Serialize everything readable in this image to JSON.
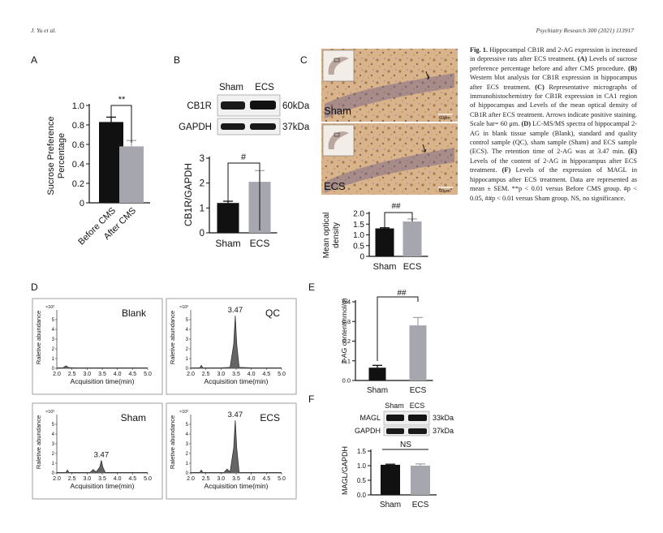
{
  "header": {
    "authors": "J. Yu et al.",
    "journal": "Psychiatry Research 300 (2021) 113917"
  },
  "panels": {
    "A": "A",
    "B": "B",
    "C": "C",
    "D": "D",
    "E": "E",
    "F": "F"
  },
  "panel_a": {
    "ylabel_line1": "Sucrose Preference",
    "ylabel_line2": "Percentage",
    "sig": "**"
  },
  "panel_b": {
    "lanes": [
      "Sham",
      "ECS"
    ],
    "bands": [
      "CB1R",
      "GAPDH"
    ],
    "kda": [
      "60kDa",
      "37kDa"
    ],
    "sig": "#"
  },
  "panel_c": {
    "labels": [
      "Sham",
      "ECS"
    ],
    "scalebar": "60μm",
    "ylabel_line1": "Mean optical",
    "ylabel_line2": "density",
    "sig": "##"
  },
  "panel_d": {
    "ylabel": "Raletive abundance",
    "xlabel": "Acquisition time(min)",
    "yunit": "×10²",
    "peak_label": "3.47",
    "titles": [
      "Blank",
      "QC",
      "Sham",
      "ECS"
    ]
  },
  "panel_e": {
    "sig": "##"
  },
  "panel_f": {
    "lanes": [
      "Sham",
      "ECS"
    ],
    "bands": [
      "MAGL",
      "GAPDH"
    ],
    "kda": [
      "33kDa",
      "37kDa"
    ],
    "sig": "NS"
  },
  "chart_data": [
    {
      "type": "bar",
      "panel": "A",
      "categories": [
        "Before CMS",
        "After CMS"
      ],
      "values": [
        0.83,
        0.58
      ],
      "errors": [
        0.05,
        0.06
      ],
      "ylabel": "Sucrose Preference Percentage",
      "ylim": [
        0,
        1.0
      ],
      "yticks": [
        "0",
        "0.2",
        "0.4",
        "0.6",
        "0.8",
        "1.0"
      ],
      "colors": [
        "#111111",
        "#a6a6ae"
      ]
    },
    {
      "type": "bar",
      "panel": "B",
      "categories": [
        "Sham",
        "ECS"
      ],
      "values": [
        1.2,
        2.05
      ],
      "errors": [
        0.07,
        0.45
      ],
      "ylabel": "CB1R/GAPDH",
      "ylim": [
        0,
        3
      ],
      "yticks": [
        "0",
        "1",
        "2",
        "3"
      ],
      "colors": [
        "#111111",
        "#a6a6ae"
      ]
    },
    {
      "type": "bar",
      "panel": "C",
      "categories": [
        "Sham",
        "ECS"
      ],
      "values": [
        1.3,
        1.62
      ],
      "errors": [
        0.03,
        0.12
      ],
      "ylabel": "Mean optical density",
      "ylim": [
        0,
        2.0
      ],
      "yticks": [
        "0",
        "0.5",
        "1.0",
        "1.5",
        "2.0"
      ],
      "colors": [
        "#111111",
        "#a6a6ae"
      ]
    },
    {
      "type": "bar",
      "panel": "E",
      "categories": [
        "Sham",
        "ECS"
      ],
      "values": [
        0.065,
        0.28
      ],
      "errors": [
        0.012,
        0.04
      ],
      "ylabel": "2-AG content(nmol/g)",
      "ylim": [
        0,
        0.4
      ],
      "yticks": [
        "0.0",
        "0.1",
        "0.2",
        "0.3",
        "0.4"
      ],
      "colors": [
        "#111111",
        "#a6a6ae"
      ]
    },
    {
      "type": "bar",
      "panel": "F",
      "categories": [
        "Sham",
        "ECS"
      ],
      "values": [
        1.03,
        1.0
      ],
      "errors": [
        0.02,
        0.06
      ],
      "ylabel": "MAGL/GAPDH",
      "ylim": [
        0,
        1.5
      ],
      "yticks": [
        "0.0",
        "0.5",
        "1.0",
        "1.5"
      ],
      "colors": [
        "#111111",
        "#a6a6ae"
      ]
    },
    {
      "type": "line",
      "panel": "D",
      "titles": [
        "Blank",
        "QC",
        "Sham",
        "ECS"
      ],
      "xlabel": "Acquisition time(min)",
      "ylabel": "Raletive abundance",
      "xlim": [
        2.0,
        5.0
      ],
      "xticks": [
        "2.0",
        "2.5",
        "3.0",
        "3.5",
        "4.0",
        "4.5",
        "5.0"
      ],
      "ylim": [
        0,
        6
      ],
      "yticks": [
        "0",
        "1",
        "2",
        "3",
        "4",
        "5"
      ],
      "series": [
        {
          "name": "Blank",
          "x": [
            2.0,
            2.2,
            2.3,
            2.4,
            2.6,
            3.0,
            3.5,
            4.0,
            4.5,
            5.0
          ],
          "y": [
            0.05,
            0.05,
            0.25,
            0.07,
            0.05,
            0.05,
            0.05,
            0.05,
            0.05,
            0.05
          ]
        },
        {
          "name": "QC",
          "x": [
            2.0,
            2.3,
            2.35,
            2.4,
            3.0,
            3.3,
            3.42,
            3.47,
            3.52,
            3.6,
            4.0,
            5.0
          ],
          "y": [
            0.05,
            0.05,
            0.3,
            0.05,
            0.05,
            0.1,
            2.5,
            5.4,
            2.5,
            0.1,
            0.05,
            0.05
          ]
        },
        {
          "name": "Sham",
          "x": [
            2.0,
            2.3,
            2.35,
            2.4,
            3.1,
            3.2,
            3.3,
            3.42,
            3.47,
            3.52,
            3.6,
            4.0,
            5.0
          ],
          "y": [
            0.05,
            0.05,
            0.3,
            0.05,
            0.05,
            0.35,
            0.1,
            0.6,
            1.3,
            0.6,
            0.05,
            0.05,
            0.05
          ]
        },
        {
          "name": "ECS",
          "x": [
            2.0,
            2.3,
            2.35,
            2.4,
            3.1,
            3.2,
            3.3,
            3.42,
            3.47,
            3.52,
            3.6,
            4.0,
            5.0
          ],
          "y": [
            0.05,
            0.05,
            0.3,
            0.05,
            0.05,
            0.4,
            0.1,
            2.6,
            5.4,
            2.6,
            0.05,
            0.05,
            0.05
          ]
        }
      ]
    }
  ],
  "caption": {
    "lead": "Fig. 1.",
    "segments": [
      {
        "b": false,
        "t": " Hippocampal CB1R and 2-AG expression is increased in depressive rats after ECS treatment. "
      },
      {
        "b": true,
        "t": "(A)"
      },
      {
        "b": false,
        "t": " Levels of sucrose preference percentage before and after CMS procedure. "
      },
      {
        "b": true,
        "t": "(B)"
      },
      {
        "b": false,
        "t": " Western blot analysis for CB1R expression in hippocampus after ECS treatment. "
      },
      {
        "b": true,
        "t": "(C)"
      },
      {
        "b": false,
        "t": " Representative micrographs of immunohistochemistry for CB1R expression in CA1 region of hippocampus and Levels of the mean optical density of CB1R after ECS treatment. Arrows indicate positive staining. Scale bar= 60 μm. "
      },
      {
        "b": true,
        "t": "(D)"
      },
      {
        "b": false,
        "t": " LC-MS/MS spectra of hippocampal 2-AG in blank tissue sample (Blank), standard and quality control sample (QC), sham sample (Sham) and ECS sample (ECS). The retention time of 2-AG was at 3.47 min. "
      },
      {
        "b": true,
        "t": "(E)"
      },
      {
        "b": false,
        "t": " Levels of the content of 2-AG in hippocampus after ECS treatment. "
      },
      {
        "b": true,
        "t": "(F)"
      },
      {
        "b": false,
        "t": " Levels of the expression of MAGL in hippocampus after ECS treatment. Data are represented as mean ± SEM. **p < 0.01 versus Before CMS group. #p < 0.05, ##p < 0.01 versus Sham group. NS, no significance."
      }
    ]
  }
}
